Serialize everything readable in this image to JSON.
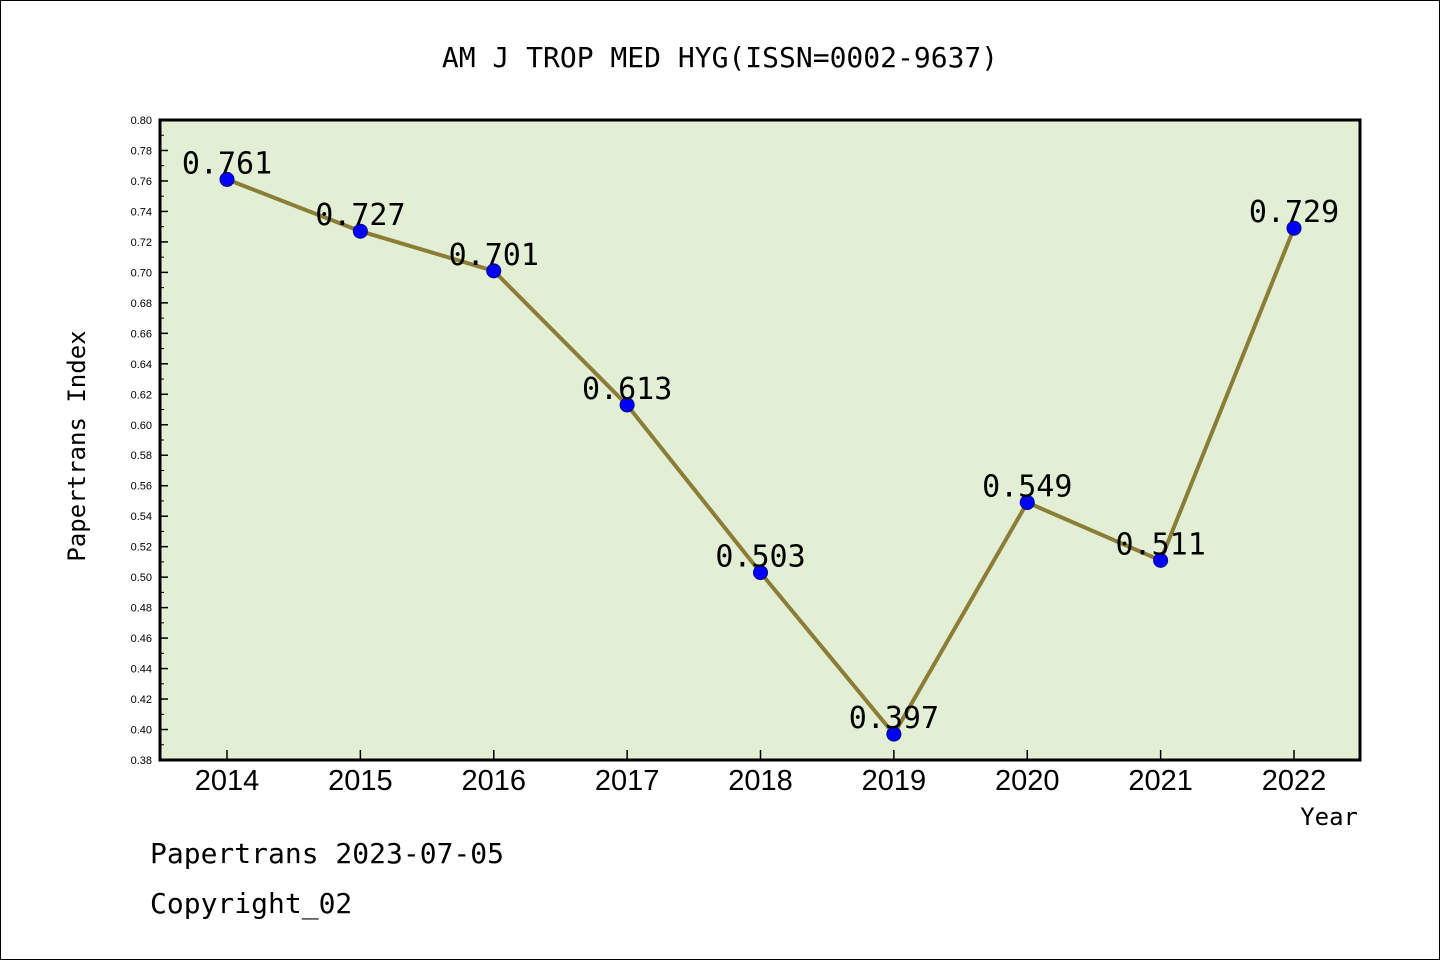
{
  "chart_data": {
    "type": "line",
    "title": "AM J TROP MED HYG(ISSN=0002-9637)",
    "xlabel": "Year",
    "ylabel": "Papertrans Index",
    "categories": [
      "2014",
      "2015",
      "2016",
      "2017",
      "2018",
      "2019",
      "2020",
      "2021",
      "2022"
    ],
    "values": [
      0.761,
      0.727,
      0.701,
      0.613,
      0.503,
      0.397,
      0.549,
      0.511,
      0.729
    ],
    "data_labels": [
      "0.761",
      "0.727",
      "0.701",
      "0.613",
      "0.503",
      "0.397",
      "0.549",
      "0.511",
      "0.729"
    ],
    "ylim": [
      0.38,
      0.8
    ],
    "yticks": [
      "0.38",
      "0.40",
      "0.42",
      "0.44",
      "0.46",
      "0.48",
      "0.50",
      "0.52",
      "0.54",
      "0.56",
      "0.58",
      "0.60",
      "0.62",
      "0.64",
      "0.66",
      "0.68",
      "0.70",
      "0.72",
      "0.74",
      "0.76",
      "0.78",
      "0.80"
    ],
    "grid": false,
    "colors": {
      "plot_background": "#e2efd4",
      "line": "#8b7d35",
      "marker": "#0000ff"
    }
  },
  "footer": {
    "date_text": "Papertrans 2023-07-05",
    "copyright_text": "Copyright_02"
  }
}
